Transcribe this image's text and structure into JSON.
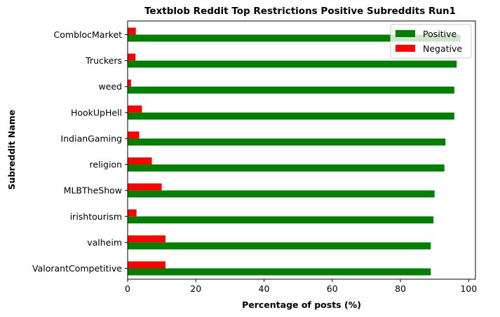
{
  "chart_data": {
    "type": "bar",
    "orientation": "horizontal",
    "title": "Textblob Reddit Top Restrictions Positive Subreddits Run1",
    "xlabel": "Percentage of posts (%)",
    "ylabel": "Subreddit Name",
    "xlim": [
      0,
      102
    ],
    "xticks": [
      0,
      20,
      40,
      60,
      80,
      100
    ],
    "grid": false,
    "legend_position": "top-right",
    "categories": [
      "ComblocMarket",
      "Truckers",
      "weed",
      "HookUpHell",
      "IndianGaming",
      "religion",
      "MLBTheShow",
      "irishtourism",
      "valheim",
      "ValorantCompetitive"
    ],
    "series": [
      {
        "name": "Positive",
        "color": "#008000",
        "values": [
          97.6,
          96.5,
          95.8,
          95.8,
          93.2,
          92.9,
          90.0,
          89.7,
          88.9,
          88.9
        ]
      },
      {
        "name": "Negative",
        "color": "#ff0000",
        "values": [
          2.4,
          2.3,
          1.0,
          4.2,
          3.4,
          7.1,
          10.0,
          2.6,
          11.1,
          11.1
        ]
      }
    ]
  }
}
